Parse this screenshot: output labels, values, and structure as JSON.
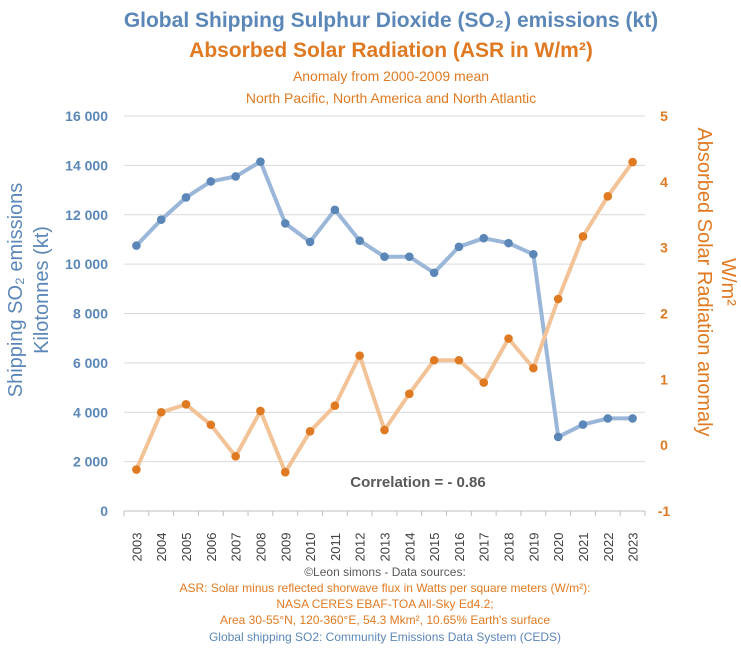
{
  "chart_data": {
    "type": "line",
    "title_line1": "Global Shipping Sulphur Dioxide (SO₂) emissions (kt)",
    "title_line2": "Absorbed Solar Radiation (ASR in W/m²)",
    "subtitle_line1": "Anomaly from 2000-2009 mean",
    "subtitle_line2": "North Pacific, North America and North Atlantic",
    "x": [
      "2003",
      "2004",
      "2005",
      "2006",
      "2007",
      "2008",
      "2009",
      "2010",
      "2011",
      "2012",
      "2013",
      "2014",
      "2015",
      "2016",
      "2017",
      "2018",
      "2019",
      "2020",
      "2021",
      "2022",
      "2023"
    ],
    "series": [
      {
        "name": "Shipping SO2 emissions (kt)",
        "axis": "left",
        "color": "#5b87b8",
        "line_color": "#9ab6d8",
        "values": [
          10750,
          11800,
          12700,
          13350,
          13550,
          14150,
          11650,
          10900,
          12200,
          10950,
          10300,
          10300,
          9650,
          10700,
          11050,
          10850,
          10400,
          3000,
          3500,
          3750,
          3750
        ]
      },
      {
        "name": "Absorbed Solar Radiation anomaly (W/m²)",
        "axis": "right",
        "color": "#e07a22",
        "line_color": "#f3c398",
        "values": [
          -0.37,
          0.5,
          0.62,
          0.31,
          -0.17,
          0.52,
          -0.41,
          0.21,
          0.6,
          1.36,
          0.23,
          0.78,
          1.29,
          1.29,
          0.95,
          1.62,
          1.17,
          2.22,
          3.17,
          3.78,
          4.3
        ]
      }
    ],
    "y_left": {
      "label_line1": "Shipping SO₂ emissions",
      "label_line2": "Kilotonnes (kt)",
      "range": [
        0,
        16000
      ],
      "ticks": [
        "16 000",
        "14 000",
        "12 000",
        "10 000",
        "8 000",
        "6 000",
        "4 000",
        "2 000",
        "0"
      ]
    },
    "y_right": {
      "label_line1": "Absorbed Solar Radiation anomaly",
      "label_line2": "W/m²",
      "range": [
        -1,
        5
      ],
      "ticks": [
        "5",
        "4",
        "3",
        "2",
        "1",
        "0",
        "-1"
      ]
    },
    "gridlines": true,
    "annotation": "Correlation = - 0.86",
    "sources": [
      "©Leon simons - Data sources:",
      "ASR: Solar minus reflected shorwave flux in Watts per square meters (W/m²):",
      "NASA CERES EBAF-TOA All-Sky Ed4.2;",
      "Area 30-55°N, 120-360°E, 54.3 Mkm², 10.65% Earth's surface",
      "Global shipping SO2: Community Emissions Data System (CEDS)"
    ]
  }
}
